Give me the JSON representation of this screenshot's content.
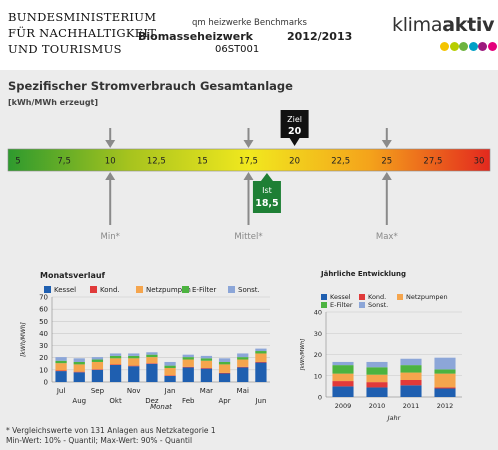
{
  "header": {
    "ministry_lines": [
      "BUNDESMINISTERIUM",
      "FÜR NACHHALTIGKEIT",
      "UND TOURISMUS"
    ],
    "subtitle": "qm heizwerke Benchmarks",
    "name": "Biomasseheizwerk",
    "year": "2012/2013",
    "code": "06ST001",
    "logo_light": "klima",
    "logo_bold": "aktiv",
    "logo_dot_colors": [
      "#f4c400",
      "#b7cd00",
      "#6db33f",
      "#00a0c6",
      "#9c1a7d",
      "#e4007c"
    ]
  },
  "main": {
    "title": "Spezifischer Stromverbrauch Gesamtanlage",
    "unit": "[kWh/MWh erzeugt]"
  },
  "chart_data": [
    {
      "type": "gauge",
      "ticks": [
        "5",
        "7,5",
        "10",
        "12,5",
        "15",
        "17,5",
        "20",
        "22,5",
        "25",
        "27,5",
        "30"
      ],
      "range": [
        5,
        30
      ],
      "gradient_colors": [
        "#2e9a2e",
        "#a6c31e",
        "#f1e81e",
        "#f4a31b",
        "#e3281e"
      ],
      "target": {
        "label": "Ziel",
        "value": 20,
        "display": "20"
      },
      "actual": {
        "label": "Ist",
        "value": 18.5,
        "display": "18,5"
      },
      "references": [
        {
          "label": "Min*",
          "value": 10
        },
        {
          "label": "Mittel*",
          "value": 17.5
        },
        {
          "label": "Max*",
          "value": 25
        }
      ]
    },
    {
      "type": "bar",
      "stacked": true,
      "title": "Monatsverlauf",
      "xlabel": "Monat",
      "ylabel": "[kWh/MWh]",
      "ylim": [
        0,
        70
      ],
      "yticks": [
        0,
        10,
        20,
        30,
        40,
        50,
        60,
        70
      ],
      "categories": [
        "Jul",
        "Aug",
        "Sep",
        "Okt",
        "Nov",
        "Dez",
        "Jan",
        "Feb",
        "Mar",
        "Apr",
        "Mai",
        "Jun"
      ],
      "legend_position": "top",
      "grid": true,
      "series": [
        {
          "name": "Kessel",
          "color": "#1f5fb0",
          "values": [
            9,
            8,
            10,
            14,
            13,
            15,
            5,
            12,
            11,
            7,
            12,
            16
          ]
        },
        {
          "name": "Kond.",
          "color": "#e03a3a",
          "values": [
            0.5,
            0.5,
            0.5,
            0.5,
            0.5,
            0.5,
            0.5,
            0.5,
            0.5,
            0.5,
            0.5,
            0.5
          ]
        },
        {
          "name": "Netzpumpen",
          "color": "#f5a54d",
          "values": [
            6,
            6,
            6,
            5,
            6,
            5,
            6,
            6,
            6,
            7,
            6,
            7
          ]
        },
        {
          "name": "E-Filter",
          "color": "#4cb340",
          "values": [
            2,
            2,
            2,
            2,
            2,
            2,
            2,
            2,
            2,
            2,
            2,
            2
          ]
        },
        {
          "name": "Sonst.",
          "color": "#8ca6d8",
          "values": [
            3,
            3,
            2,
            2,
            2,
            2,
            3,
            2,
            2,
            3,
            3,
            2
          ]
        }
      ]
    },
    {
      "type": "bar",
      "stacked": true,
      "title": "Jährliche Entwicklung",
      "xlabel": "Jahr",
      "ylabel": "[kWh/MWh]",
      "ylim": [
        0,
        40
      ],
      "yticks": [
        0,
        10,
        20,
        30,
        40
      ],
      "categories": [
        "2009",
        "2010",
        "2011",
        "2012"
      ],
      "legend_position": "top",
      "grid": true,
      "series": [
        {
          "name": "Kessel",
          "color": "#1f5fb0",
          "values": [
            5,
            4.5,
            5.5,
            4
          ]
        },
        {
          "name": "Kond.",
          "color": "#e03a3a",
          "values": [
            2.5,
            2.5,
            2.5,
            0.5
          ]
        },
        {
          "name": "Netzpumpen",
          "color": "#f5a54d",
          "values": [
            3.5,
            3.5,
            3.5,
            6.5
          ]
        },
        {
          "name": "E-Filter",
          "color": "#4cb340",
          "values": [
            4,
            3.5,
            3.5,
            2
          ]
        },
        {
          "name": "Sonst.",
          "color": "#8ca6d8",
          "values": [
            1.5,
            2.5,
            3,
            5.5
          ]
        }
      ]
    }
  ],
  "footnote": {
    "line1": "* Vergleichswerte von 131 Anlagen aus Netzkategorie 1",
    "line2": "Min-Wert: 10% - Quantil; Max-Wert: 90% - Quantil"
  }
}
